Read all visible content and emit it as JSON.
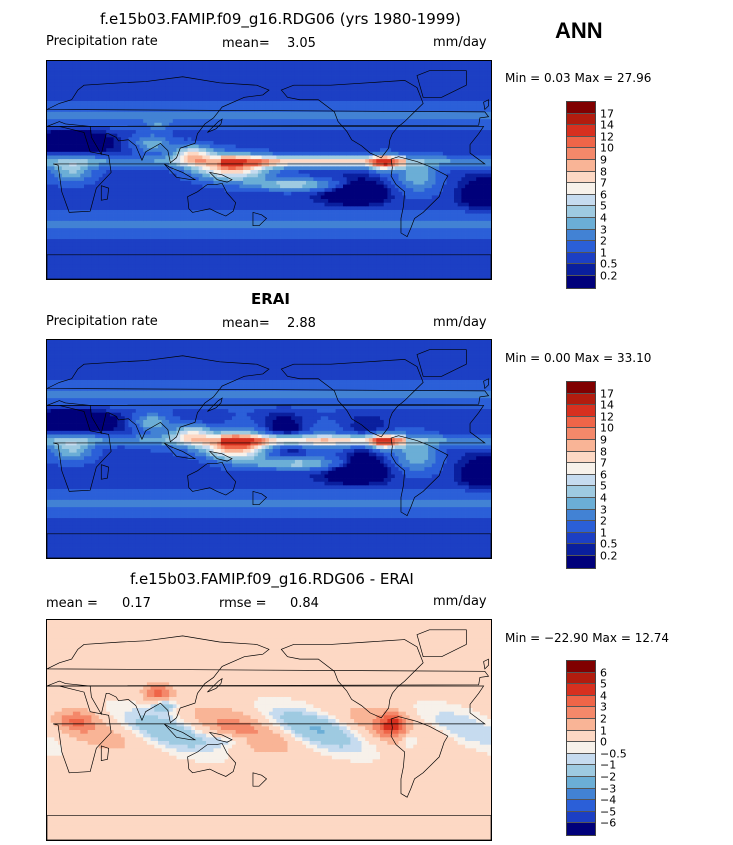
{
  "season": "ANN",
  "panels": [
    {
      "title": "f.e15b03.FAMIP.f09_g16.RDG06 (yrs 1980-1999)",
      "left_label": "Precipitation rate",
      "stat1": "mean=",
      "stat1_val": "3.05",
      "stat2": "",
      "stat2_val": "",
      "units": "mm/day",
      "minmax": "Min =   0.03 Max =  27.96",
      "field": "model",
      "levels": [
        "17",
        "14",
        "12",
        "10",
        "9",
        "8",
        "7",
        "6",
        "5",
        "4",
        "3",
        "2",
        "1",
        "0.5",
        "0.2"
      ],
      "colors": [
        "#800000",
        "#b21c0e",
        "#d7301f",
        "#ef6548",
        "#f4886a",
        "#f9b496",
        "#fdd8c4",
        "#f7f1ea",
        "#c6dbef",
        "#9ecae1",
        "#6baed6",
        "#4282d4",
        "#2b5fd8",
        "#1c3fc4",
        "#0a1f9e",
        "#00007a"
      ]
    },
    {
      "title": "ERAI",
      "left_label": "Precipitation rate",
      "stat1": "mean=",
      "stat1_val": "2.88",
      "stat2": "",
      "stat2_val": "",
      "units": "mm/day",
      "minmax": "Min =   0.00 Max =  33.10",
      "field": "obs",
      "levels": [
        "17",
        "14",
        "12",
        "10",
        "9",
        "8",
        "7",
        "6",
        "5",
        "4",
        "3",
        "2",
        "1",
        "0.5",
        "0.2"
      ],
      "colors": [
        "#800000",
        "#b21c0e",
        "#d7301f",
        "#ef6548",
        "#f4886a",
        "#f9b496",
        "#fdd8c4",
        "#f7f1ea",
        "#c6dbef",
        "#9ecae1",
        "#6baed6",
        "#4282d4",
        "#2b5fd8",
        "#1c3fc4",
        "#0a1f9e",
        "#00007a"
      ]
    },
    {
      "title": "f.e15b03.FAMIP.f09_g16.RDG06 - ERAI",
      "left_label": "",
      "stat1": "mean =",
      "stat1_val": "0.17",
      "stat2": "rmse =",
      "stat2_val": "0.84",
      "units": "mm/day",
      "minmax": "Min = −22.90 Max =  12.74",
      "field": "diff",
      "levels": [
        "6",
        "5",
        "4",
        "3",
        "2",
        "1",
        "0",
        "−0.5",
        "−1",
        "−2",
        "−3",
        "−4",
        "−5",
        "−6"
      ],
      "colors": [
        "#800000",
        "#b21c0e",
        "#d7301f",
        "#ef6548",
        "#f4886a",
        "#f9b496",
        "#fdd8c4",
        "#f7f1ea",
        "#c6dbef",
        "#9ecae1",
        "#6baed6",
        "#4282d4",
        "#2b5fd8",
        "#1c3fc4",
        "#00007a"
      ]
    }
  ]
}
